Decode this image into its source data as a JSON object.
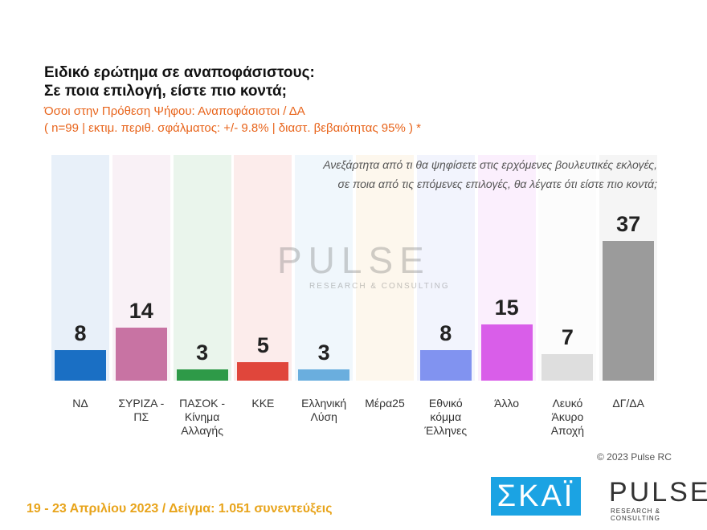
{
  "chart_data": {
    "type": "bar",
    "title": [
      "Ειδικό ερώτημα σε αναποφάσιστους:",
      "Σε ποια επιλογή, είστε πιο κοντά;"
    ],
    "subtitle": [
      "Όσοι στην Πρόθεση Ψήφου: Αναποφάσιστοι / ΔΑ",
      "( n=99  |  εκτιμ. περιθ. σφάλματος: +/- 9.8%  |  διαστ. βεβαιότητας 95% ) *"
    ],
    "annotation": [
      "Ανεξάρτητα από τι θα ψηφίσετε στις ερχόμενες βουλευτικές εκλογές,",
      "σε ποια από τις επόμενες επιλογές, θα λέγατε ότι είστε πιο κοντά;"
    ],
    "categories": [
      "ΝΔ",
      "ΣΥΡΙΖΑ - ΠΣ",
      "ΠΑΣΟΚ - Κίνημα Αλλαγής",
      "ΚΚΕ",
      "Ελληνική Λύση",
      "Μέρα25",
      "Εθνικό κόμμα Έλληνες",
      "Άλλο",
      "Λευκό Άκυρο Αποχή",
      "ΔΓ/ΔΑ"
    ],
    "values": [
      8,
      14,
      3,
      5,
      3,
      null,
      8,
      15,
      7,
      37
    ],
    "colors": [
      "#1a6fc4",
      "#c873a3",
      "#2e9a48",
      "#e0463b",
      "#6aaede",
      "#e8b04a",
      "#8193f0",
      "#d95ee9",
      "#dedede",
      "#9b9b9b"
    ],
    "source": "© 2023 Pulse RC",
    "footer": "19 - 23  Απριλίου  2023  /  Δείγμα:  1.051 συνεντεύξεις",
    "watermark": [
      "PULSE",
      "RESEARCH & CONSULTING"
    ],
    "logos": [
      "ΣΚΑΪ",
      "PULSE",
      "RESEARCH & CONSULTING"
    ]
  }
}
